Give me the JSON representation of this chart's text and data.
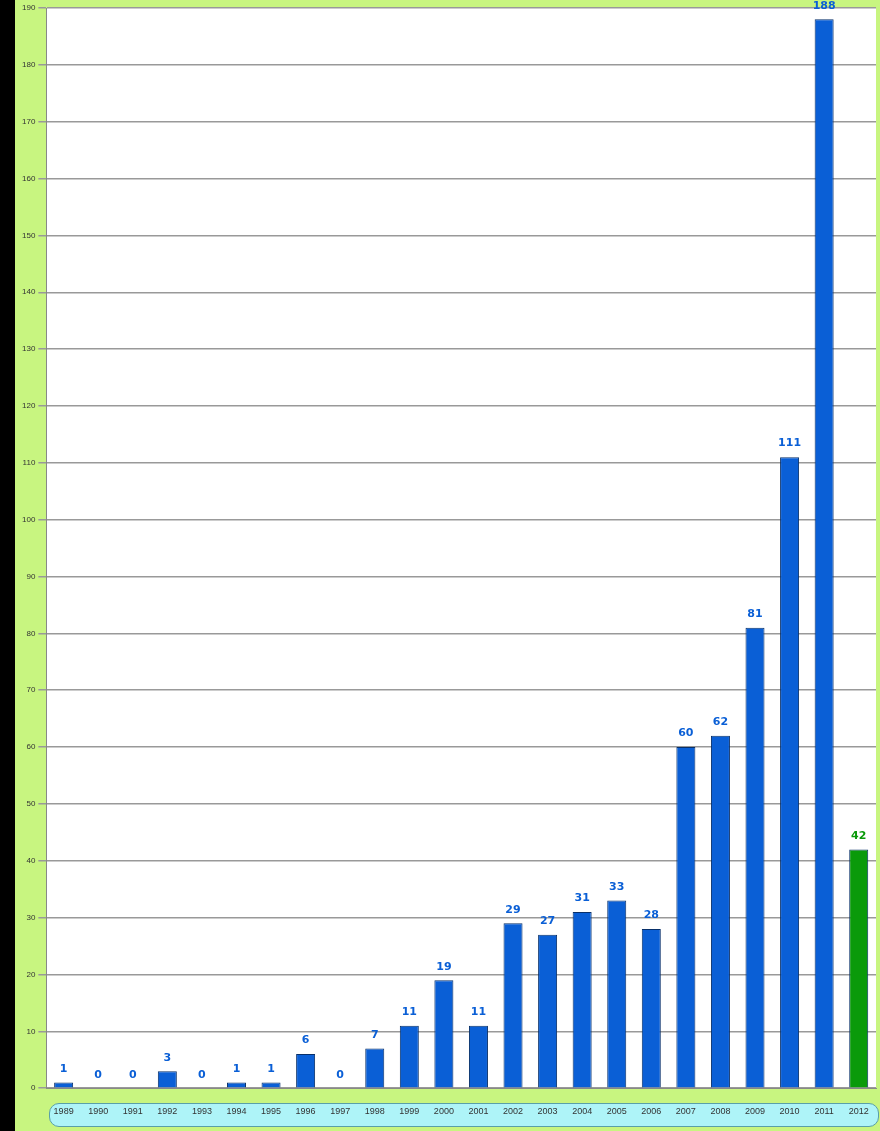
{
  "chart_data": {
    "type": "bar",
    "categories": [
      "1989",
      "1990",
      "1991",
      "1992",
      "1993",
      "1994",
      "1995",
      "1996",
      "1997",
      "1998",
      "1999",
      "2000",
      "2001",
      "2002",
      "2003",
      "2004",
      "2005",
      "2006",
      "2007",
      "2008",
      "2009",
      "2010",
      "2011",
      "2012"
    ],
    "values": [
      1,
      0,
      0,
      3,
      0,
      1,
      1,
      6,
      0,
      7,
      11,
      19,
      11,
      29,
      27,
      31,
      33,
      28,
      60,
      62,
      81,
      111,
      188,
      42
    ],
    "colors": [
      "#0a5fd6",
      "#0a5fd6",
      "#0a5fd6",
      "#0a5fd6",
      "#0a5fd6",
      "#0a5fd6",
      "#0a5fd6",
      "#0a5fd6",
      "#0a5fd6",
      "#0a5fd6",
      "#0a5fd6",
      "#0a5fd6",
      "#0a5fd6",
      "#0a5fd6",
      "#0a5fd6",
      "#0a5fd6",
      "#0a5fd6",
      "#0a5fd6",
      "#0a5fd6",
      "#0a5fd6",
      "#0a5fd6",
      "#0a5fd6",
      "#0a5fd6",
      "#0a9a0a"
    ],
    "ylim": [
      0,
      190
    ],
    "yticks": [
      0,
      10,
      20,
      30,
      40,
      50,
      60,
      70,
      80,
      90,
      100,
      110,
      120,
      130,
      140,
      150,
      160,
      170,
      180,
      190
    ],
    "grid": "y",
    "legend": false,
    "data_labels": true
  }
}
